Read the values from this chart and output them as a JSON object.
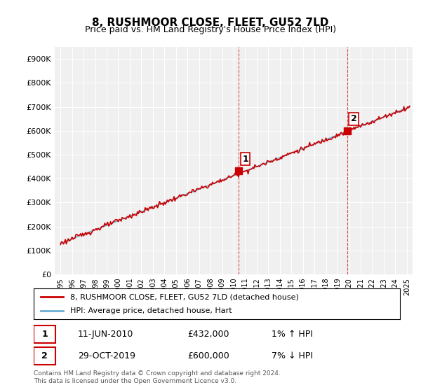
{
  "title": "8, RUSHMOOR CLOSE, FLEET, GU52 7LD",
  "subtitle": "Price paid vs. HM Land Registry's House Price Index (HPI)",
  "ylabel_ticks": [
    "£0",
    "£100K",
    "£200K",
    "£300K",
    "£400K",
    "£500K",
    "£600K",
    "£700K",
    "£800K",
    "£900K"
  ],
  "ytick_values": [
    0,
    100000,
    200000,
    300000,
    400000,
    500000,
    600000,
    700000,
    800000,
    900000
  ],
  "ylim": [
    0,
    950000
  ],
  "xlim_start": 1994.5,
  "xlim_end": 2025.5,
  "hpi_color": "#6baed6",
  "price_color": "#cc0000",
  "marker1_x": 2010.44,
  "marker1_y": 432000,
  "marker2_x": 2019.83,
  "marker2_y": 600000,
  "marker1_label": "1",
  "marker2_label": "2",
  "vline1_x": 2010.44,
  "vline2_x": 2019.83,
  "legend_line1": "8, RUSHMOOR CLOSE, FLEET, GU52 7LD (detached house)",
  "legend_line2": "HPI: Average price, detached house, Hart",
  "table_row1": [
    "1",
    "11-JUN-2010",
    "£432,000",
    "1% ↑ HPI"
  ],
  "table_row2": [
    "2",
    "29-OCT-2019",
    "£600,000",
    "7% ↓ HPI"
  ],
  "footnote": "Contains HM Land Registry data © Crown copyright and database right 2024.\nThis data is licensed under the Open Government Licence v3.0.",
  "bg_color": "#ffffff",
  "plot_bg_color": "#f0f0f0"
}
